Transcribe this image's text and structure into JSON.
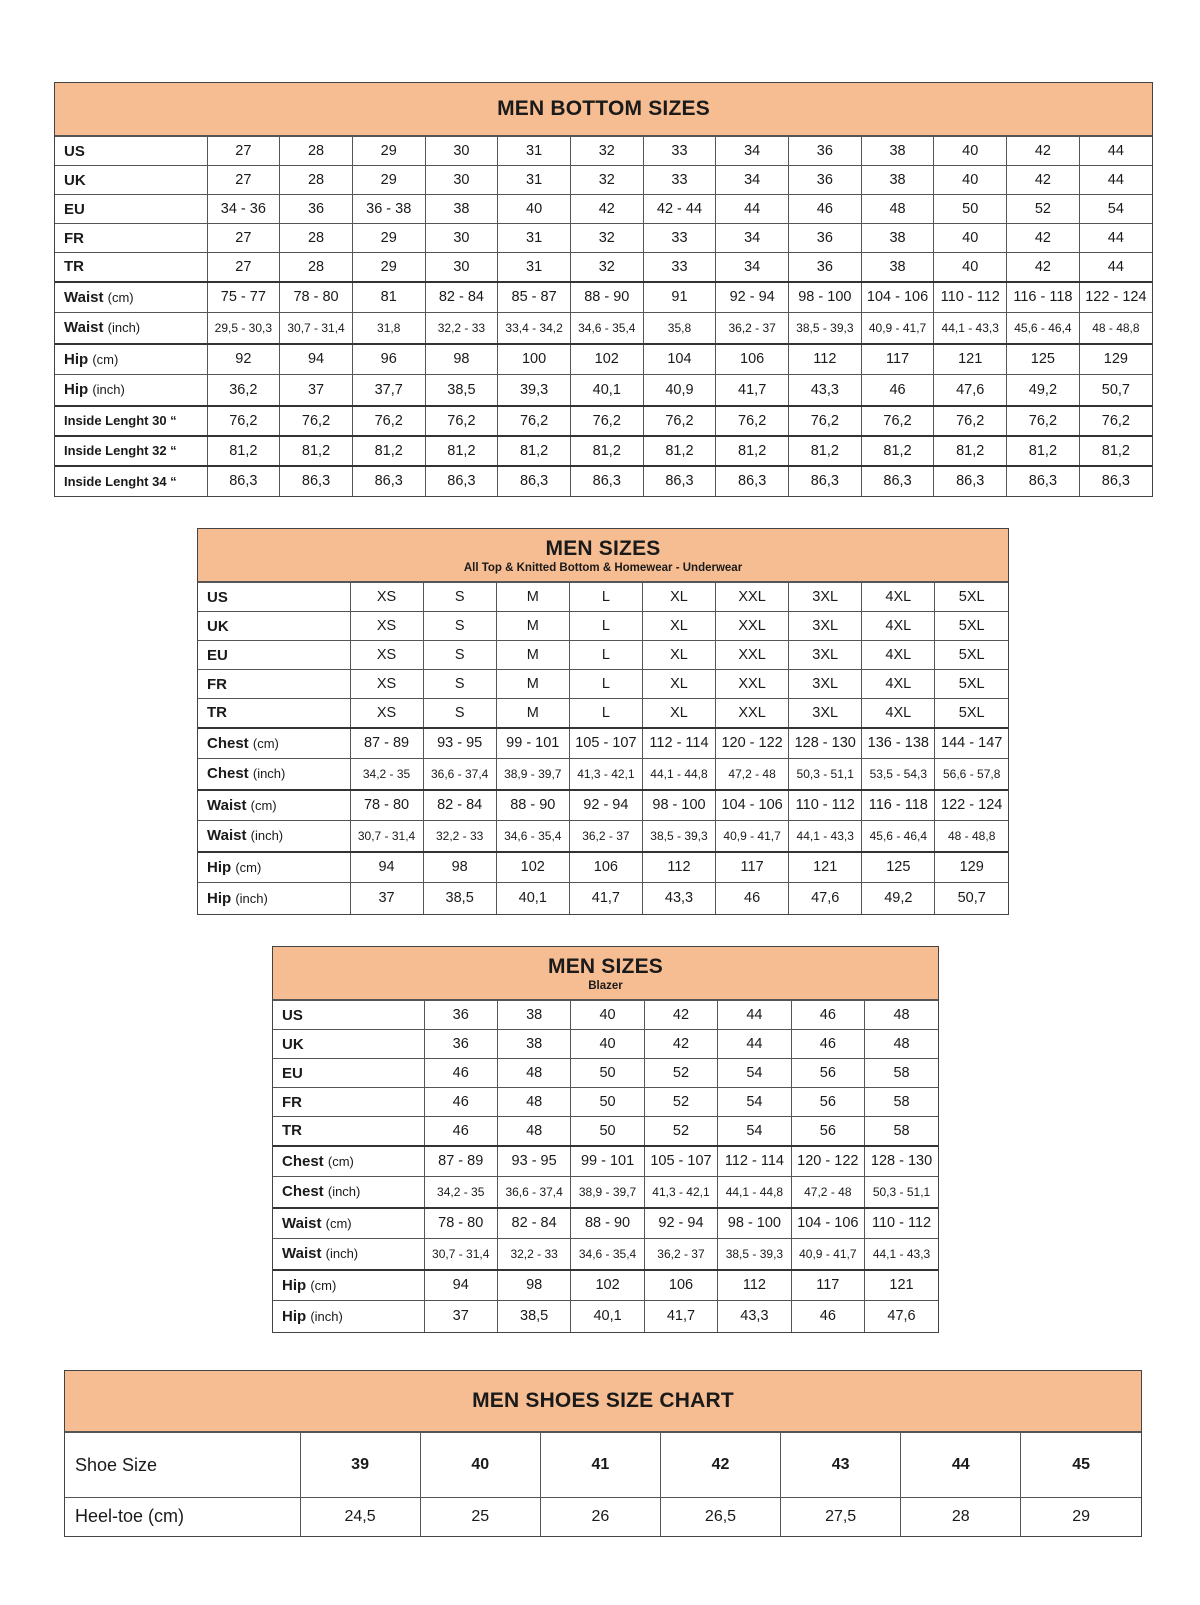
{
  "colors": {
    "header_bg": "#f7bd92",
    "border": "#555555"
  },
  "tables": [
    {
      "title": "MEN BOTTOM SIZES",
      "sections": [
        [
          {
            "label": "US",
            "values": [
              "27",
              "28",
              "29",
              "30",
              "31",
              "32",
              "33",
              "34",
              "36",
              "38",
              "40",
              "42",
              "44"
            ]
          },
          {
            "label": "UK",
            "values": [
              "27",
              "28",
              "29",
              "30",
              "31",
              "32",
              "33",
              "34",
              "36",
              "38",
              "40",
              "42",
              "44"
            ]
          },
          {
            "label": "EU",
            "values": [
              "34 - 36",
              "36",
              "36 - 38",
              "38",
              "40",
              "42",
              "42 - 44",
              "44",
              "46",
              "48",
              "50",
              "52",
              "54"
            ]
          },
          {
            "label": "FR",
            "values": [
              "27",
              "28",
              "29",
              "30",
              "31",
              "32",
              "33",
              "34",
              "36",
              "38",
              "40",
              "42",
              "44"
            ]
          },
          {
            "label": "TR",
            "values": [
              "27",
              "28",
              "29",
              "30",
              "31",
              "32",
              "33",
              "34",
              "36",
              "38",
              "40",
              "42",
              "44"
            ]
          }
        ],
        [
          {
            "label": "Waist",
            "unit": "(cm)",
            "values": [
              "75 - 77",
              "78 - 80",
              "81",
              "82 - 84",
              "85 - 87",
              "88 - 90",
              "91",
              "92 - 94",
              "98 - 100",
              "104 - 106",
              "110 - 112",
              "116 - 118",
              "122 - 124"
            ]
          },
          {
            "label": "Waist",
            "unit": "(inch)",
            "small": true,
            "values": [
              "29,5 - 30,3",
              "30,7 - 31,4",
              "31,8",
              "32,2 - 33",
              "33,4  - 34,2",
              "34,6 - 35,4",
              "35,8",
              "36,2 - 37",
              "38,5 - 39,3",
              "40,9 - 41,7",
              "44,1 - 43,3",
              "45,6 - 46,4",
              "48 - 48,8"
            ]
          }
        ],
        [
          {
            "label": "Hip",
            "unit": "(cm)",
            "values": [
              "92",
              "94",
              "96",
              "98",
              "100",
              "102",
              "104",
              "106",
              "112",
              "117",
              "121",
              "125",
              "129"
            ]
          },
          {
            "label": "Hip",
            "unit": "(inch)",
            "values": [
              "36,2",
              "37",
              "37,7",
              "38,5",
              "39,3",
              "40,1",
              "40,9",
              "41,7",
              "43,3",
              "46",
              "47,6",
              "49,2",
              "50,7"
            ]
          }
        ],
        [
          {
            "label": "Inside Lenght 30 “",
            "tiny": true,
            "values": [
              "76,2",
              "76,2",
              "76,2",
              "76,2",
              "76,2",
              "76,2",
              "76,2",
              "76,2",
              "76,2",
              "76,2",
              "76,2",
              "76,2",
              "76,2"
            ]
          }
        ],
        [
          {
            "label": "Inside Lenght 32 “",
            "tiny": true,
            "values": [
              "81,2",
              "81,2",
              "81,2",
              "81,2",
              "81,2",
              "81,2",
              "81,2",
              "81,2",
              "81,2",
              "81,2",
              "81,2",
              "81,2",
              "81,2"
            ]
          }
        ],
        [
          {
            "label": "Inside Lenght 34 “",
            "tiny": true,
            "values": [
              "86,3",
              "86,3",
              "86,3",
              "86,3",
              "86,3",
              "86,3",
              "86,3",
              "86,3",
              "86,3",
              "86,3",
              "86,3",
              "86,3",
              "86,3"
            ]
          }
        ]
      ]
    },
    {
      "title": "MEN SIZES",
      "subtitle": "All Top & Knitted Bottom & Homewear - Underwear",
      "sections": [
        [
          {
            "label": "US",
            "values": [
              "XS",
              "S",
              "M",
              "L",
              "XL",
              "XXL",
              "3XL",
              "4XL",
              "5XL"
            ]
          },
          {
            "label": "UK",
            "values": [
              "XS",
              "S",
              "M",
              "L",
              "XL",
              "XXL",
              "3XL",
              "4XL",
              "5XL"
            ]
          },
          {
            "label": "EU",
            "values": [
              "XS",
              "S",
              "M",
              "L",
              "XL",
              "XXL",
              "3XL",
              "4XL",
              "5XL"
            ]
          },
          {
            "label": "FR",
            "values": [
              "XS",
              "S",
              "M",
              "L",
              "XL",
              "XXL",
              "3XL",
              "4XL",
              "5XL"
            ]
          },
          {
            "label": "TR",
            "values": [
              "XS",
              "S",
              "M",
              "L",
              "XL",
              "XXL",
              "3XL",
              "4XL",
              "5XL"
            ]
          }
        ],
        [
          {
            "label": "Chest",
            "unit": "(cm)",
            "values": [
              "87 - 89",
              "93 - 95",
              "99 - 101",
              "105 - 107",
              "112 - 114",
              "120 - 122",
              "128 - 130",
              "136 - 138",
              "144 - 147"
            ]
          },
          {
            "label": "Chest",
            "unit": "(inch)",
            "small": true,
            "values": [
              "34,2 - 35",
              "36,6 - 37,4",
              "38,9 - 39,7",
              "41,3 - 42,1",
              "44,1 - 44,8",
              "47,2 - 48",
              "50,3 - 51,1",
              "53,5 - 54,3",
              "56,6 - 57,8"
            ]
          }
        ],
        [
          {
            "label": "Waist",
            "unit": "(cm)",
            "values": [
              "78 - 80",
              "82 - 84",
              "88 - 90",
              "92 - 94",
              "98 - 100",
              "104 - 106",
              "110 - 112",
              "116 - 118",
              "122 - 124"
            ]
          },
          {
            "label": "Waist",
            "unit": "(inch)",
            "small": true,
            "values": [
              "30,7 - 31,4",
              "32,2 - 33",
              "34,6 - 35,4",
              "36,2 - 37",
              "38,5 - 39,3",
              "40,9 - 41,7",
              "44,1 - 43,3",
              "45,6 - 46,4",
              "48 - 48,8"
            ]
          }
        ],
        [
          {
            "label": "Hip",
            "unit": "(cm)",
            "values": [
              "94",
              "98",
              "102",
              "106",
              "112",
              "117",
              "121",
              "125",
              "129"
            ]
          },
          {
            "label": "Hip",
            "unit": "(inch)",
            "values": [
              "37",
              "38,5",
              "40,1",
              "41,7",
              "43,3",
              "46",
              "47,6",
              "49,2",
              "50,7"
            ]
          }
        ]
      ]
    },
    {
      "title": "MEN SIZES",
      "subtitle": "Blazer",
      "sections": [
        [
          {
            "label": "US",
            "values": [
              "36",
              "38",
              "40",
              "42",
              "44",
              "46",
              "48"
            ]
          },
          {
            "label": "UK",
            "values": [
              "36",
              "38",
              "40",
              "42",
              "44",
              "46",
              "48"
            ]
          },
          {
            "label": "EU",
            "values": [
              "46",
              "48",
              "50",
              "52",
              "54",
              "56",
              "58"
            ]
          },
          {
            "label": "FR",
            "values": [
              "46",
              "48",
              "50",
              "52",
              "54",
              "56",
              "58"
            ]
          },
          {
            "label": "TR",
            "values": [
              "46",
              "48",
              "50",
              "52",
              "54",
              "56",
              "58"
            ]
          }
        ],
        [
          {
            "label": "Chest",
            "unit": "(cm)",
            "values": [
              "87 - 89",
              "93 - 95",
              "99 - 101",
              "105 - 107",
              "112 - 114",
              "120 - 122",
              "128 - 130"
            ]
          },
          {
            "label": "Chest",
            "unit": "(inch)",
            "small": true,
            "values": [
              "34,2 - 35",
              "36,6 - 37,4",
              "38,9 - 39,7",
              "41,3 - 42,1",
              "44,1 - 44,8",
              "47,2 - 48",
              "50,3 - 51,1"
            ]
          }
        ],
        [
          {
            "label": "Waist",
            "unit": "(cm)",
            "values": [
              "78 - 80",
              "82 - 84",
              "88 - 90",
              "92 - 94",
              "98 - 100",
              "104 - 106",
              "110 - 112"
            ]
          },
          {
            "label": "Waist",
            "unit": "(inch)",
            "small": true,
            "values": [
              "30,7 - 31,4",
              "32,2 - 33",
              "34,6 - 35,4",
              "36,2 - 37",
              "38,5 - 39,3",
              "40,9 - 41,7",
              "44,1 - 43,3"
            ]
          }
        ],
        [
          {
            "label": "Hip",
            "unit": "(cm)",
            "values": [
              "94",
              "98",
              "102",
              "106",
              "112",
              "117",
              "121"
            ]
          },
          {
            "label": "Hip",
            "unit": "(inch)",
            "values": [
              "37",
              "38,5",
              "40,1",
              "41,7",
              "43,3",
              "46",
              "47,6"
            ]
          }
        ]
      ]
    },
    {
      "title": "MEN SHOES SIZE CHART",
      "sections": [
        [
          {
            "label": "Shoe Size",
            "values": [
              "39",
              "40",
              "41",
              "42",
              "43",
              "44",
              "45"
            ]
          }
        ],
        [
          {
            "label": "Heel-toe (cm)",
            "values": [
              "24,5",
              "25",
              "26",
              "26,5",
              "27,5",
              "28",
              "29"
            ]
          }
        ]
      ]
    }
  ]
}
